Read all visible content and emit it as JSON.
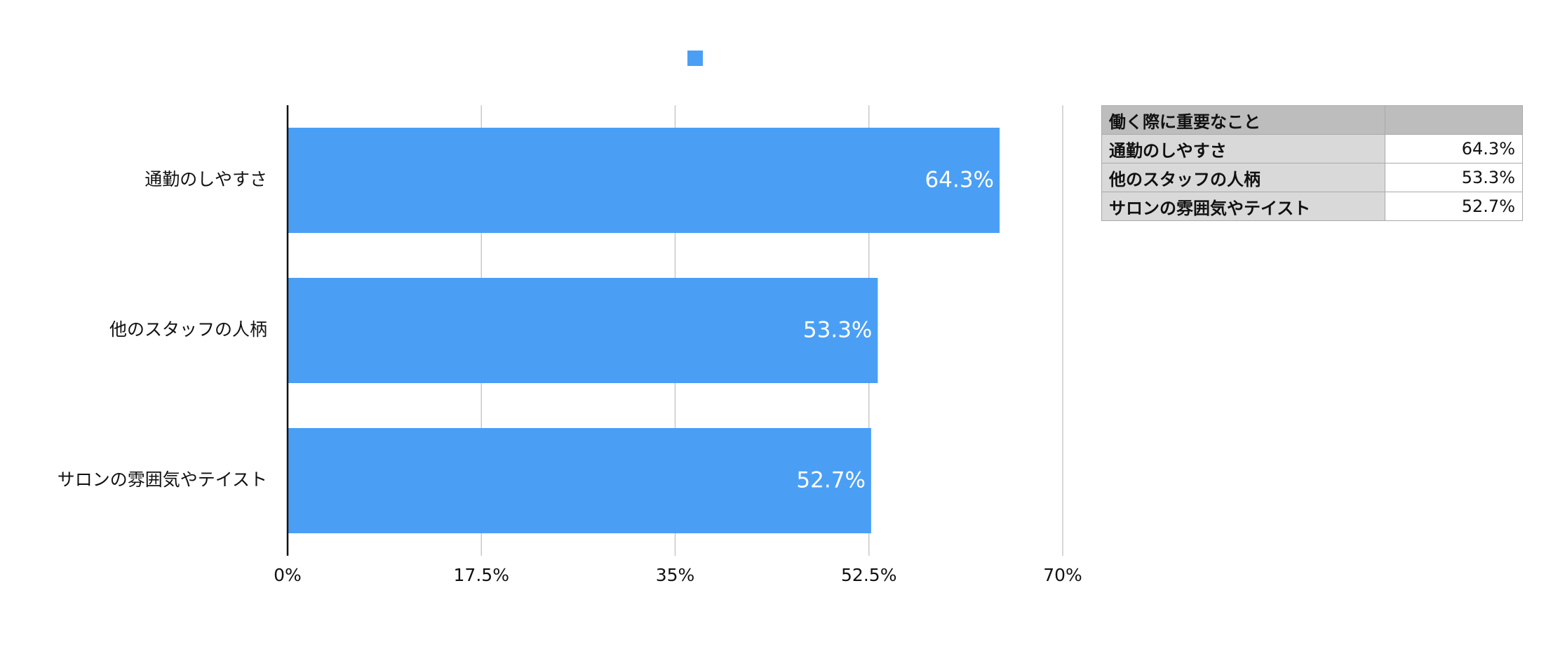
{
  "colors": {
    "bar": "#4a9ff5",
    "grid": "#c8c8c8",
    "axis": "#111111",
    "data_label": "#ffffff"
  },
  "chart_data": {
    "type": "bar",
    "orientation": "horizontal",
    "categories": [
      "通勤のしやすさ",
      "他のスタッフの人柄",
      "サロンの雰囲気やテイスト"
    ],
    "series": [
      {
        "values": [
          64.3,
          53.3,
          52.7
        ],
        "color": "#4a9ff5"
      }
    ],
    "data_labels": [
      "64.3%",
      "53.3%",
      "52.7%"
    ],
    "x_ticks": [
      "0%",
      "17.5%",
      "35%",
      "52.5%",
      "70%"
    ],
    "x_tick_values": [
      0,
      17.5,
      35,
      52.5,
      70
    ],
    "xlim": [
      0,
      70
    ],
    "grid": true,
    "legend": "top-center",
    "title": "",
    "xlabel": "",
    "ylabel": ""
  },
  "table": {
    "header": [
      "働く際に重要なこと",
      ""
    ],
    "rows": [
      [
        "通勤のしやすさ",
        "64.3%"
      ],
      [
        "他のスタッフの人柄",
        "53.3%"
      ],
      [
        "サロンの雰囲気やテイスト",
        "52.7%"
      ]
    ]
  }
}
